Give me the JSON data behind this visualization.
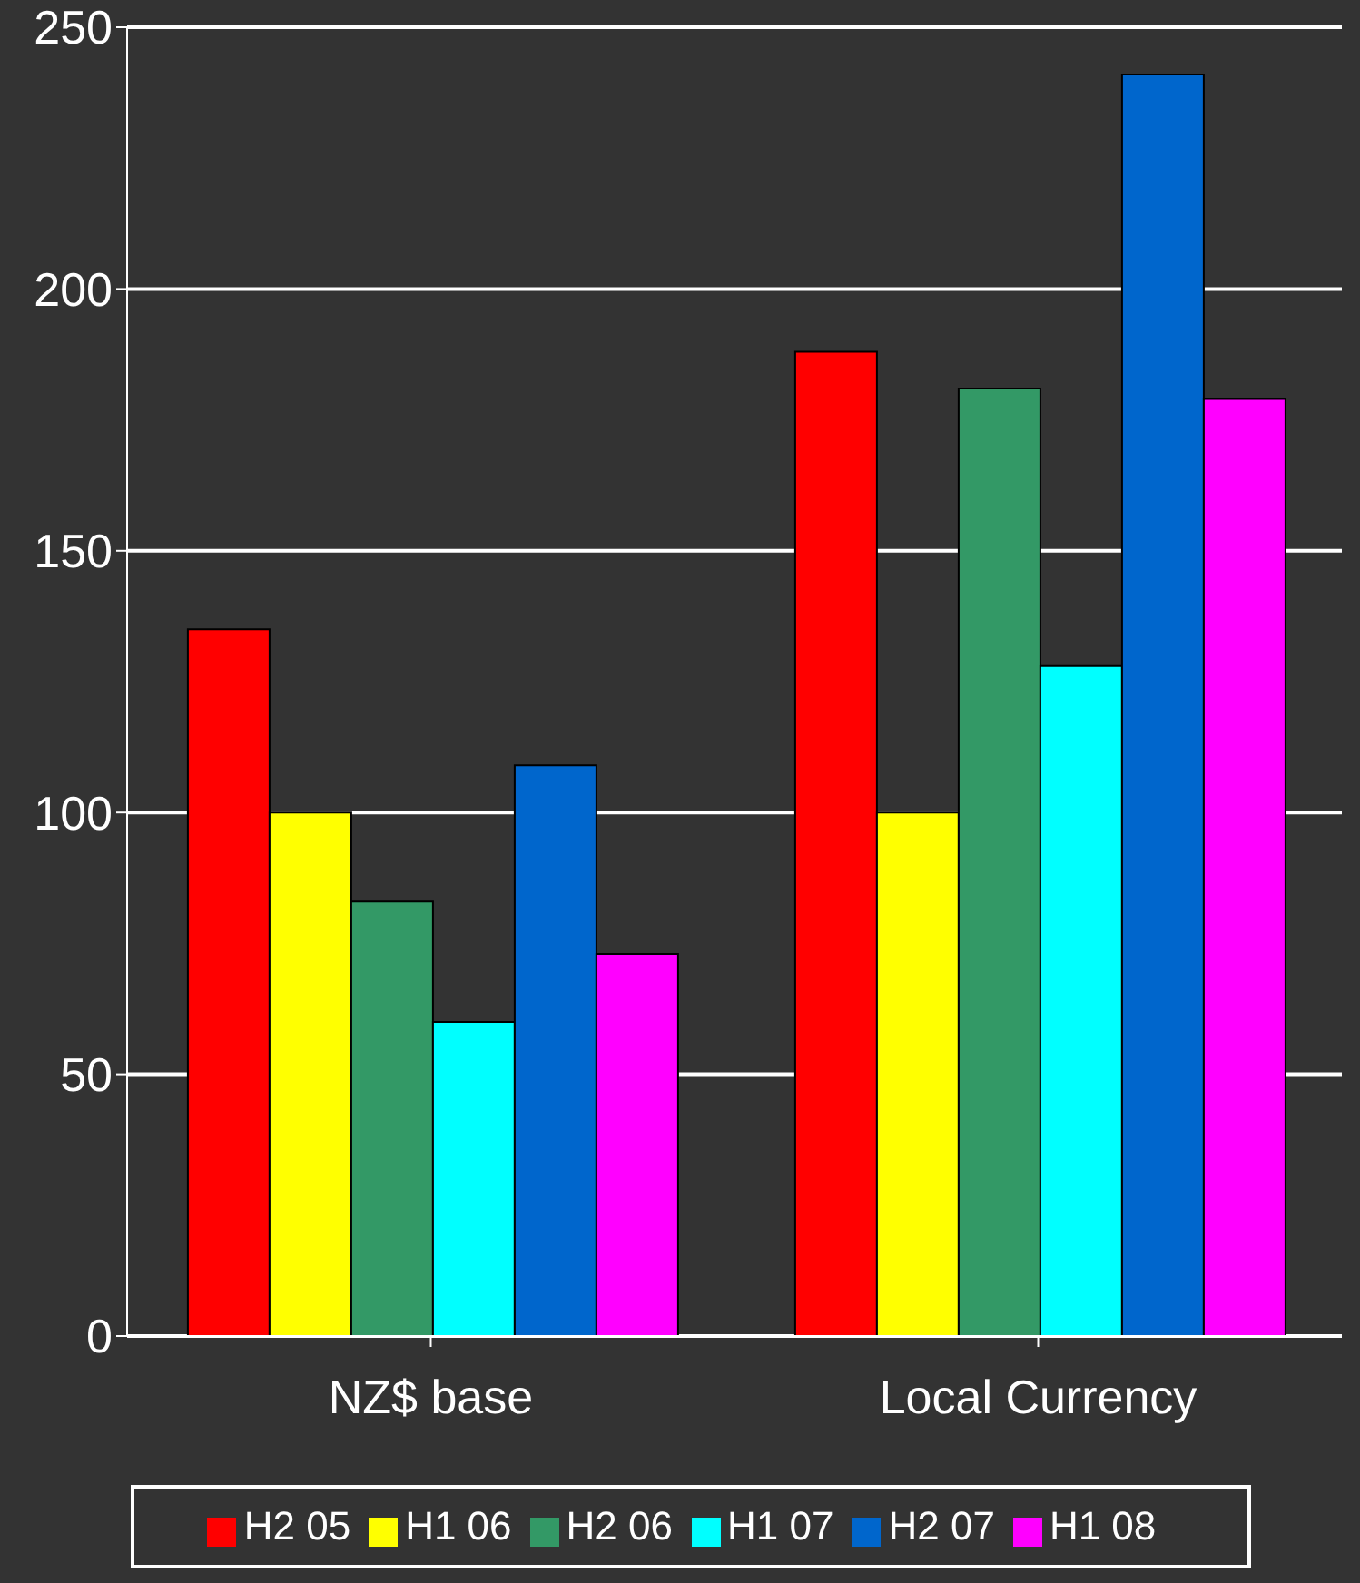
{
  "chart_data": {
    "type": "bar",
    "categories": [
      "NZ$ base",
      "Local Currency"
    ],
    "series": [
      {
        "name": "H2 05",
        "color": "#ff0000",
        "values": [
          135,
          188
        ]
      },
      {
        "name": "H1 06",
        "color": "#ffff00",
        "values": [
          100,
          100
        ]
      },
      {
        "name": "H2 06",
        "color": "#339966",
        "values": [
          83,
          181
        ]
      },
      {
        "name": "H1 07",
        "color": "#00ffff",
        "values": [
          60,
          128
        ]
      },
      {
        "name": "H2 07",
        "color": "#0066cc",
        "values": [
          109,
          241
        ]
      },
      {
        "name": "H1 08",
        "color": "#ff00ff",
        "values": [
          73,
          179
        ]
      }
    ],
    "ylim": [
      0,
      250
    ],
    "yticks": [
      0,
      50,
      100,
      150,
      200,
      250
    ],
    "grid": "y",
    "legend": "bottom"
  }
}
